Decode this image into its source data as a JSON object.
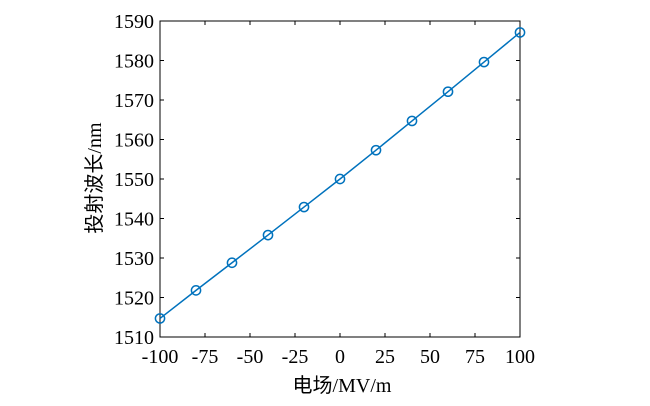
{
  "chart_data": {
    "type": "line",
    "title": "",
    "xlabel": "电场/MV/m",
    "ylabel": "投射波长/nm",
    "xlim": [
      -100,
      100
    ],
    "ylim": [
      1510,
      1590
    ],
    "xticks": [
      -100,
      -75,
      -50,
      -25,
      0,
      25,
      50,
      75,
      100
    ],
    "xtick_labels": [
      "-100",
      "-75",
      "-50",
      "-25",
      "0",
      "25",
      "50",
      "75",
      "100"
    ],
    "yticks": [
      1510,
      1520,
      1530,
      1540,
      1550,
      1560,
      1570,
      1580,
      1590
    ],
    "ytick_labels": [
      "1510",
      "1520",
      "1530",
      "1540",
      "1550",
      "1560",
      "1570",
      "1580",
      "1590"
    ],
    "grid": false,
    "legend": "none",
    "series": [
      {
        "color": "#0072BD",
        "marker": "circle",
        "x": [
          -100,
          -80,
          -60,
          -40,
          -20,
          0,
          20,
          40,
          60,
          80,
          100
        ],
        "y": [
          1514.7,
          1521.8,
          1528.8,
          1535.8,
          1542.9,
          1550.0,
          1557.3,
          1564.7,
          1572.1,
          1579.6,
          1587.1
        ]
      }
    ]
  }
}
